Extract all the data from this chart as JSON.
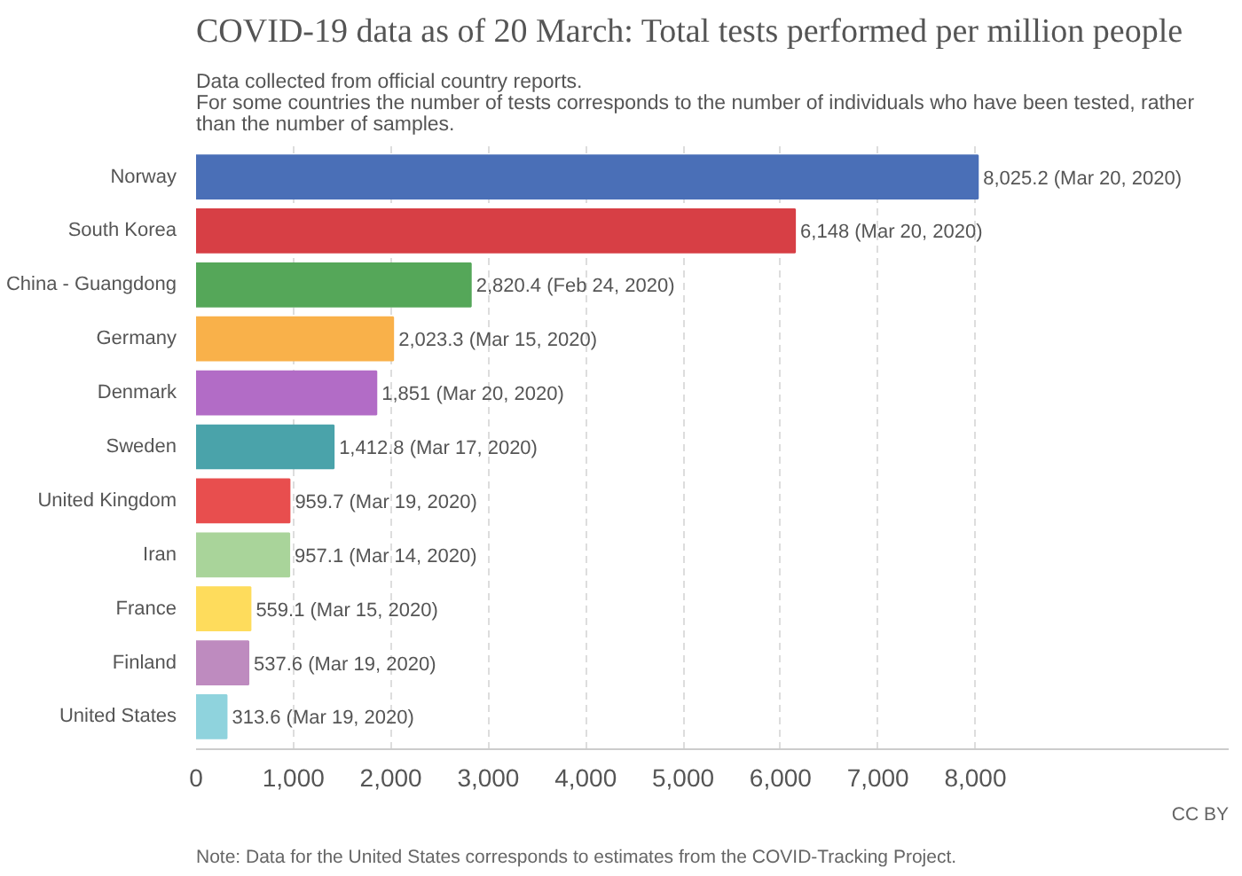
{
  "chart_data": {
    "type": "bar",
    "orientation": "horizontal",
    "title": "COVID-19 data as of 20 March: Total tests performed per million people",
    "subtitle": "Data collected from official country reports.\nFor some countries the number of tests corresponds to the number of individuals who have been tested, rather\nthan the number of samples.",
    "categories": [
      "Norway",
      "South Korea",
      "China - Guangdong",
      "Germany",
      "Denmark",
      "Sweden",
      "United Kingdom",
      "Iran",
      "France",
      "Finland",
      "United States"
    ],
    "values": [
      8025.2,
      6148,
      2820.4,
      2023.3,
      1851,
      1412.8,
      959.7,
      957.1,
      559.1,
      537.6,
      313.6
    ],
    "value_labels": [
      "8,025.2 (Mar 20, 2020)",
      "6,148 (Mar 20, 2020)",
      "2,820.4 (Feb 24, 2020)",
      "2,023.3 (Mar 15, 2020)",
      "1,851 (Mar 20, 2020)",
      "1,412.8 (Mar 17, 2020)",
      "959.7 (Mar 19, 2020)",
      "957.1 (Mar 14, 2020)",
      "559.1 (Mar 15, 2020)",
      "537.6 (Mar 19, 2020)",
      "313.6 (Mar 19, 2020)"
    ],
    "colors": [
      "#4a6fb7",
      "#d73f45",
      "#55a759",
      "#f9b14a",
      "#b26cc6",
      "#4aa3aa",
      "#e84e4e",
      "#a9d49a",
      "#fedc5c",
      "#be8bbf",
      "#8fd3dd"
    ],
    "xlim": [
      0,
      10600
    ],
    "xticks": [
      0,
      {
        "value": 1000,
        "label": "1,000"
      },
      {
        "value": 2000,
        "label": "2,000"
      },
      {
        "value": 3000,
        "label": "3,000"
      },
      {
        "value": 4000,
        "label": "4,000"
      },
      {
        "value": 5000,
        "label": "5,000"
      },
      {
        "value": 6000,
        "label": "6,000"
      },
      {
        "value": 7000,
        "label": "7,000"
      },
      {
        "value": 8000,
        "label": "8,000"
      }
    ],
    "grid": "x",
    "annotations": [
      "CC BY",
      "Note: Data for the United States corresponds to estimates from the COVID-Tracking Project."
    ]
  }
}
